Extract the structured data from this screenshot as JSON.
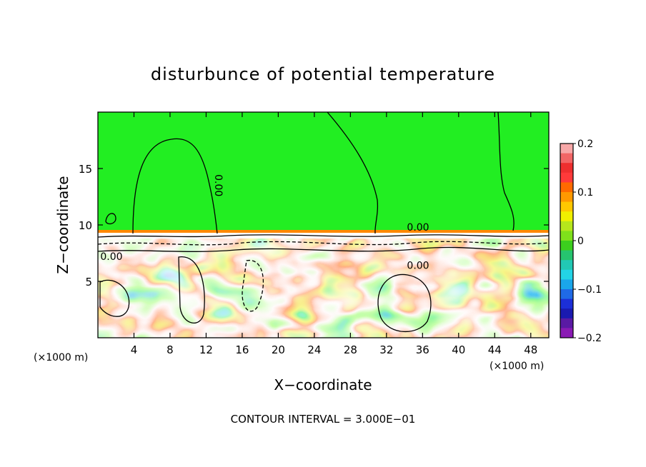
{
  "chart_data": {
    "type": "heatmap",
    "title": "disturbunce of potential temperature",
    "xlabel": "X−coordinate",
    "ylabel": "Z−coordinate",
    "x_unit": "(×1000 m)",
    "y_unit": "(×1000 m)",
    "xlim": [
      0,
      50
    ],
    "ylim": [
      0,
      20
    ],
    "x_ticks": [
      4,
      8,
      12,
      16,
      20,
      24,
      28,
      32,
      36,
      40,
      44,
      48
    ],
    "x_tick_labels": [
      "4",
      "8",
      "12",
      "16",
      "20",
      "24",
      "28",
      "32",
      "36",
      "40",
      "44",
      "48"
    ],
    "y_ticks": [
      5,
      10,
      15
    ],
    "y_tick_labels": [
      "5",
      "10",
      "15"
    ],
    "contour_labels": [
      {
        "text": "0.00",
        "x": 13,
        "y": 13.5,
        "rotate": 90
      },
      {
        "text": "0.00",
        "x": 35.5,
        "y": 9.5
      },
      {
        "text": "0.00",
        "x": 1.5,
        "y": 6.9
      },
      {
        "text": "0.00",
        "x": 35.5,
        "y": 6.1
      }
    ],
    "annotation": "CONTOUR INTERVAL = 3.000E−01",
    "colorbar": {
      "min": -0.2,
      "max": 0.2,
      "tick_values": [
        0.2,
        0.1,
        0,
        -0.1,
        -0.2
      ],
      "tick_labels": [
        "0.2",
        "0.1",
        "0",
        "−0.1",
        "−0.2"
      ],
      "colors": [
        "#f7a8a8",
        "#f26666",
        "#ee2f2f",
        "#ff3a3a",
        "#ff6a00",
        "#ff9900",
        "#ffc800",
        "#f0f000",
        "#b6e61c",
        "#7fe01b",
        "#3ccf1e",
        "#26c46f",
        "#22c8b4",
        "#23d4e6",
        "#1aa6ea",
        "#1f6ae6",
        "#1c2fd8",
        "#1a1ab0",
        "#5a1aa4",
        "#8a1ab4"
      ]
    },
    "upper_layer_value": 0,
    "upper_layer_color": "#22ee22",
    "inversion_height": 9.2,
    "grid": false
  }
}
